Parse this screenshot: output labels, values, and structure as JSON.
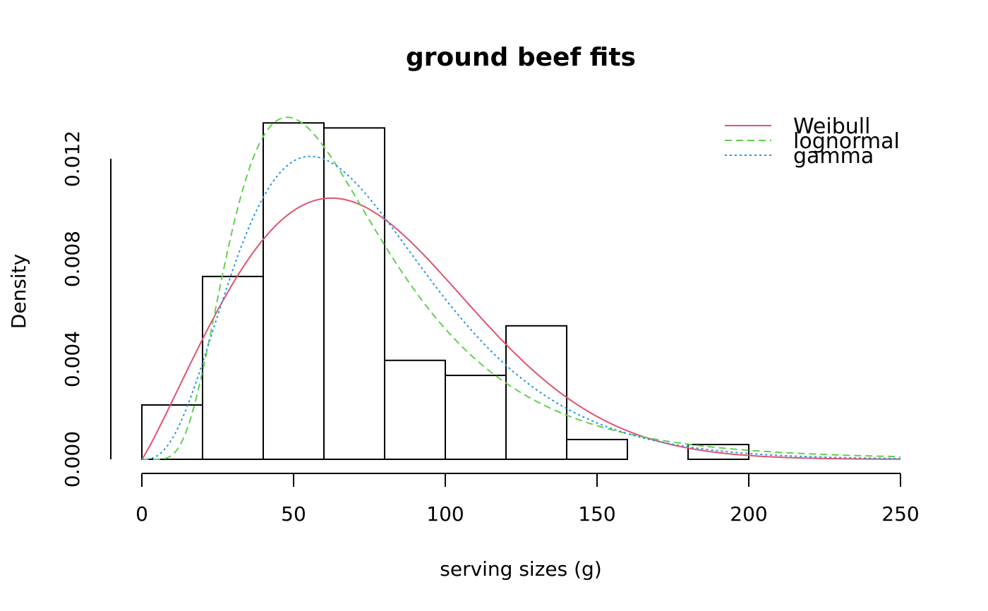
{
  "chart_data": {
    "type": "bar",
    "title": "ground beef fits",
    "xlabel": "serving sizes (g)",
    "ylabel": "Density",
    "xlim": [
      0,
      250
    ],
    "ylim": [
      0,
      0.012
    ],
    "x_ticks": [
      0,
      50,
      100,
      150,
      200,
      250
    ],
    "x_tick_labels": [
      "0",
      "50",
      "100",
      "150",
      "200",
      "250"
    ],
    "y_ticks": [
      0,
      0.002,
      0.004,
      0.006,
      0.008,
      0.01,
      0.012
    ],
    "y_tick_labels": [
      "0.000",
      "",
      "0.004",
      "",
      "0.008",
      "",
      "0.012"
    ],
    "histogram": {
      "bin_edges": [
        0,
        20,
        40,
        60,
        80,
        100,
        120,
        140,
        160,
        180,
        200
      ],
      "density": [
        0.00217,
        0.0073,
        0.01343,
        0.01323,
        0.00395,
        0.00335,
        0.00533,
        0.00079,
        0.0,
        0.00059
      ]
    },
    "series": [
      {
        "name": "Weibull",
        "dist": "weibull",
        "shape": 2.1,
        "scale": 85,
        "color": "#DF536B",
        "dash": "solid"
      },
      {
        "name": "lognormal",
        "dist": "lognormal",
        "meanlog": 4.15,
        "sdlog": 0.53,
        "color": "#61D04F",
        "dash": "dashed"
      },
      {
        "name": "gamma",
        "dist": "gamma",
        "shape": 4.0,
        "rate": 0.054,
        "color": "#2297E6",
        "dash": "dotted"
      }
    ],
    "legend_position": "top-right",
    "grid": false
  }
}
